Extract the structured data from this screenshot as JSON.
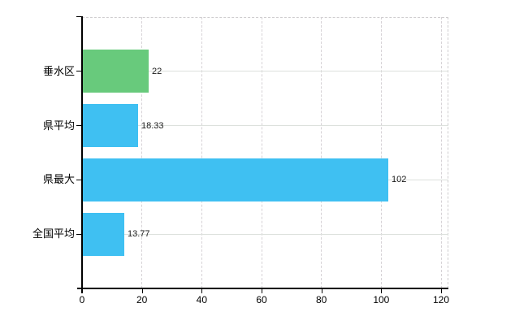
{
  "chart_data": {
    "type": "bar",
    "orientation": "horizontal",
    "title": "",
    "xlabel": "",
    "ylabel": "",
    "categories": [
      "垂水区",
      "県平均",
      "県最大",
      "全国平均"
    ],
    "values": [
      22,
      18.33,
      102,
      13.77
    ],
    "value_labels": [
      "22",
      "18.33",
      "102",
      "13.77"
    ],
    "bar_colors": [
      "#68ca7c",
      "#3fc0f2",
      "#3fc0f2",
      "#3fc0f2"
    ],
    "xlim": [
      0,
      120
    ],
    "x_ticks": [
      0,
      20,
      40,
      60,
      80,
      100,
      120
    ],
    "x_tick_labels": [
      "0",
      "20",
      "40",
      "60",
      "80",
      "100",
      "120"
    ],
    "grid": "on",
    "legend": "none",
    "colors": {
      "highlight_bar": "#68ca7c",
      "default_bar": "#3fc0f2",
      "axis": "#000000",
      "gridline_vertical": "#d6d2d6",
      "gridline_horizontal": "#dde1dd",
      "text": "#000000",
      "background": "#ffffff"
    }
  }
}
